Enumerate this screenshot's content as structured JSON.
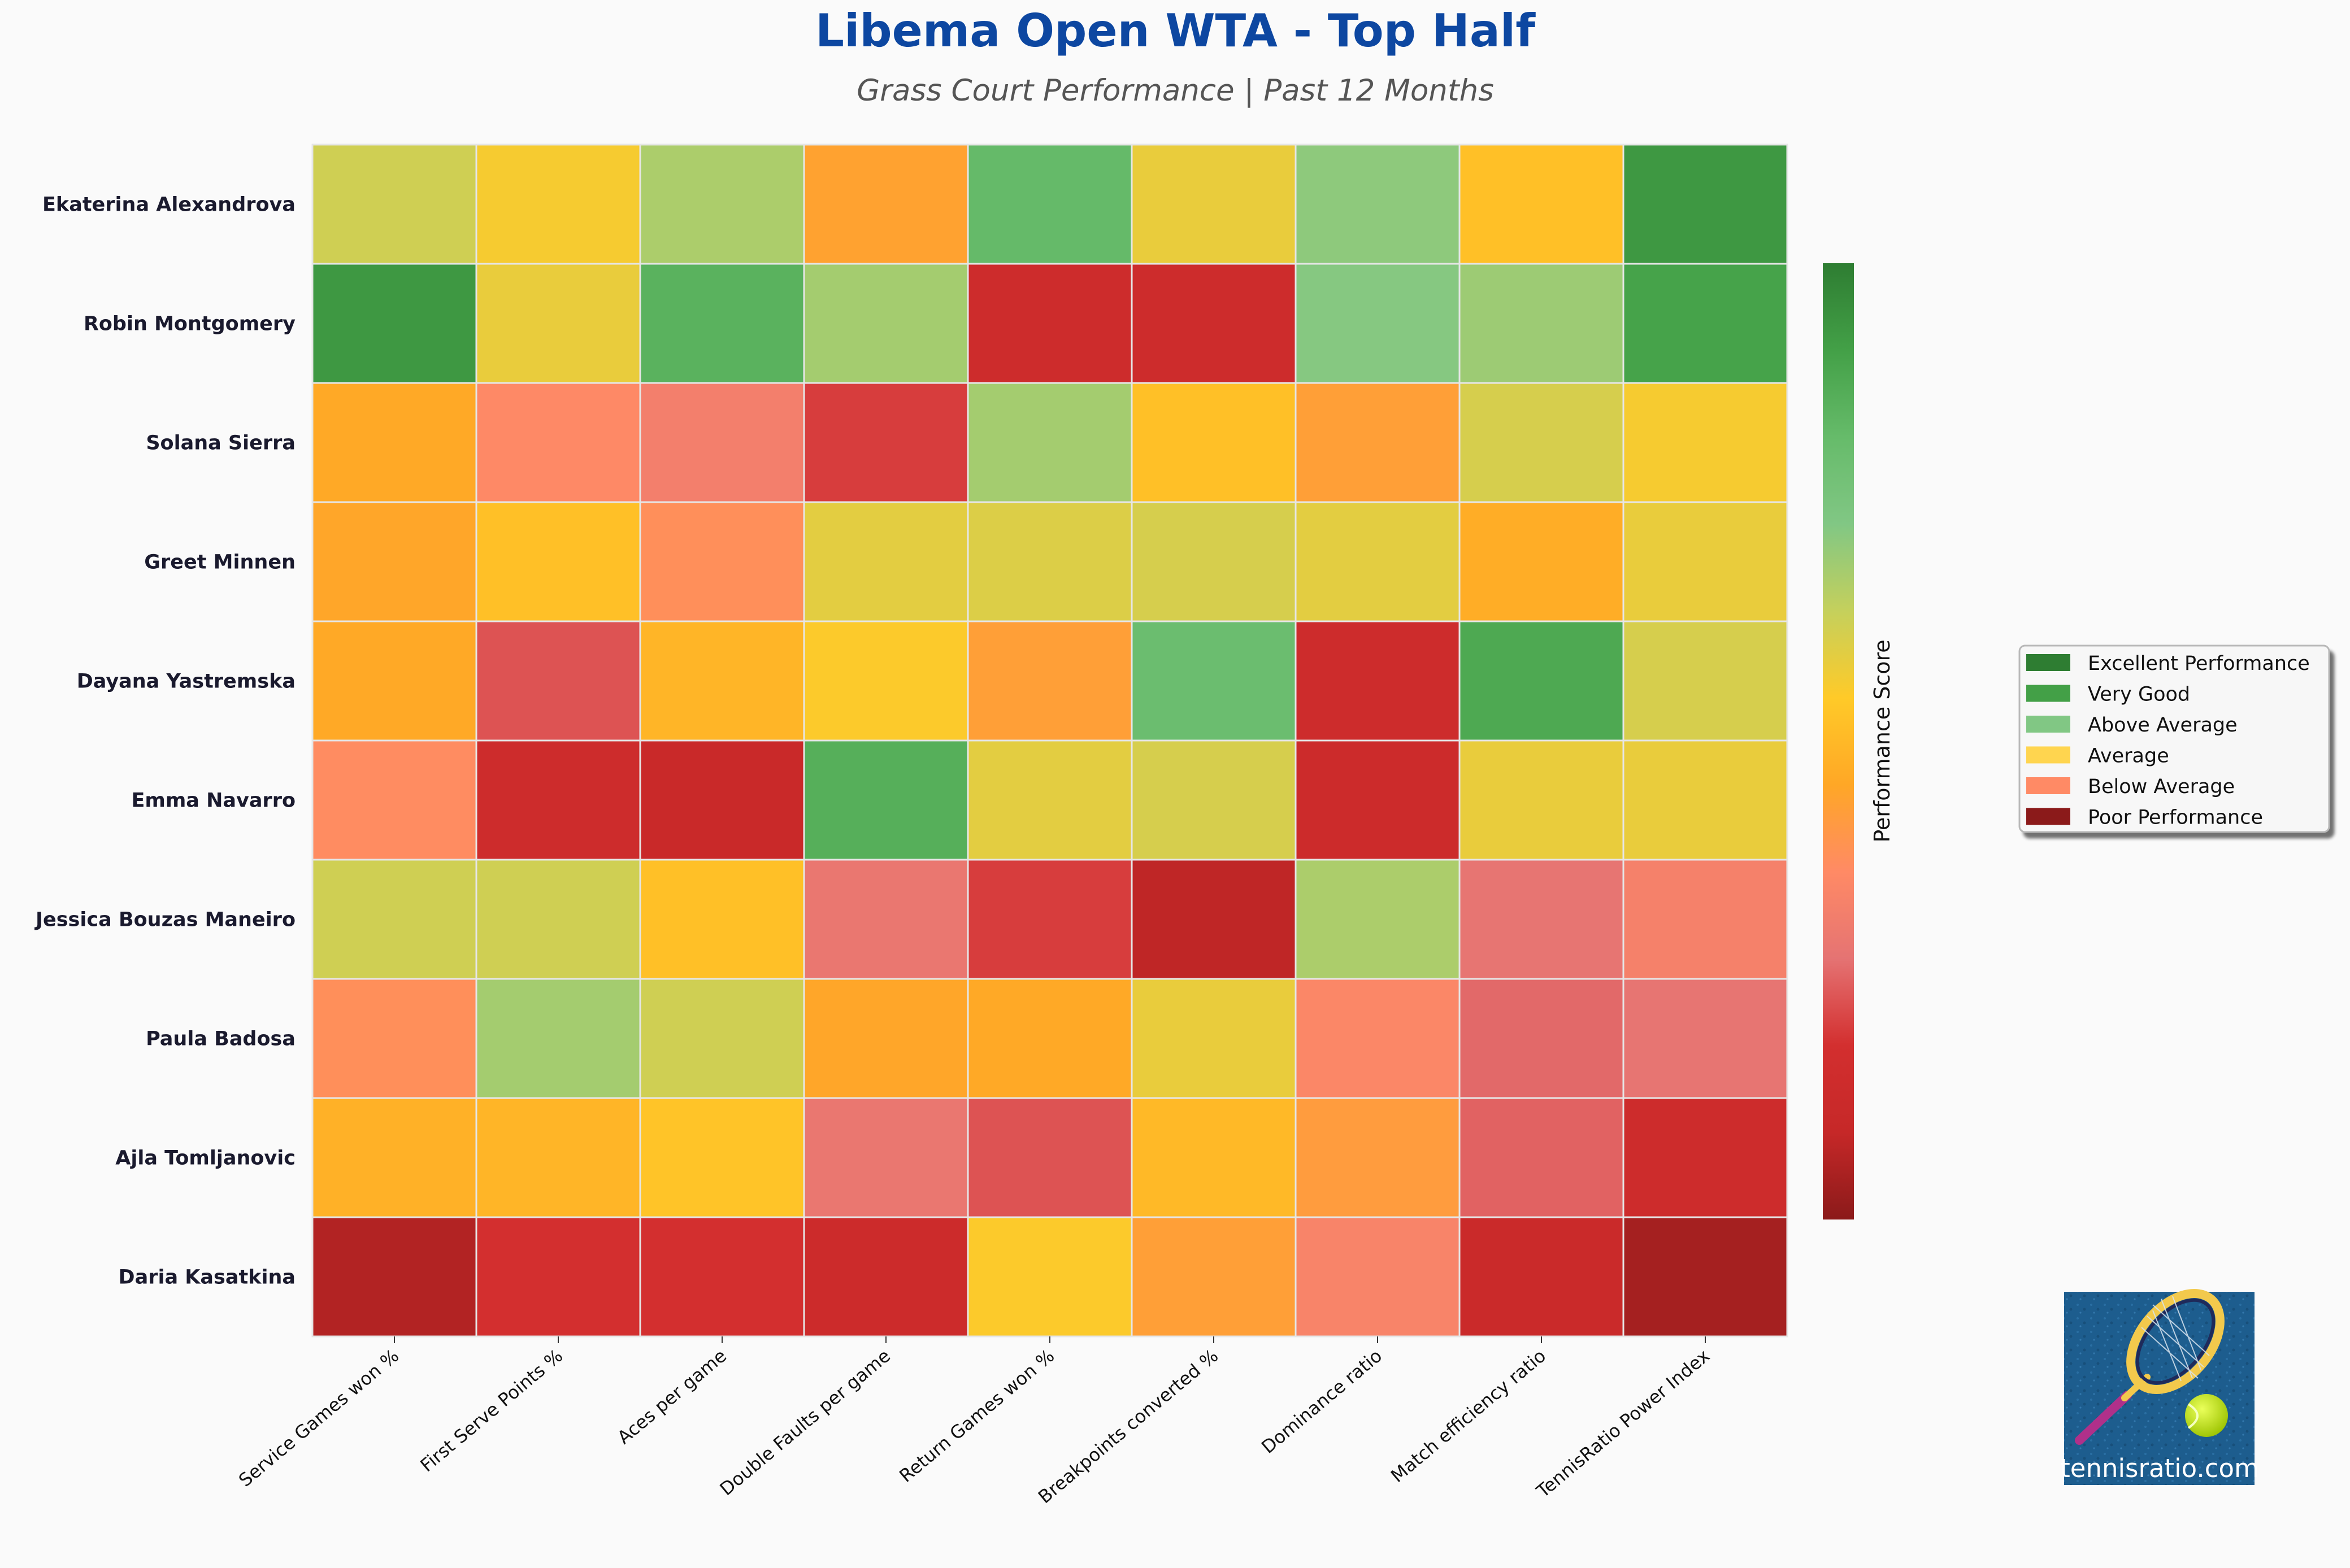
{
  "chart_data": {
    "type": "heatmap",
    "title": "Libema Open WTA - Top Half",
    "subtitle": "Grass Court Performance | Past 12 Months",
    "rows": [
      "Ekaterina Alexandrova",
      "Robin Montgomery",
      "Solana Sierra",
      "Greet Minnen",
      "Dayana Yastremska",
      "Emma Navarro",
      "Jessica Bouzas Maneiro",
      "Paula Badosa",
      "Ajla Tomljanovic",
      "Daria Kasatkina"
    ],
    "columns": [
      "Service Games won %",
      "First Serve Points %",
      "Aces per game",
      "Double Faults per game",
      "Return Games won %",
      "Breakpoints converted %",
      "Dominance ratio",
      "Match efficiency ratio",
      "TennisRatio Power Index"
    ],
    "values": [
      [
        0.62,
        0.56,
        0.67,
        0.44,
        0.82,
        0.58,
        0.71,
        0.52,
        0.93
      ],
      [
        0.93,
        0.58,
        0.85,
        0.68,
        0.14,
        0.14,
        0.72,
        0.69,
        0.9
      ],
      [
        0.46,
        0.36,
        0.32,
        0.2,
        0.68,
        0.52,
        0.43,
        0.61,
        0.56
      ],
      [
        0.45,
        0.52,
        0.38,
        0.59,
        0.6,
        0.61,
        0.59,
        0.47,
        0.58
      ],
      [
        0.46,
        0.23,
        0.49,
        0.55,
        0.43,
        0.8,
        0.14,
        0.88,
        0.61
      ],
      [
        0.37,
        0.14,
        0.11,
        0.86,
        0.59,
        0.61,
        0.13,
        0.58,
        0.58
      ],
      [
        0.62,
        0.62,
        0.52,
        0.29,
        0.2,
        0.08,
        0.67,
        0.28,
        0.33
      ],
      [
        0.38,
        0.68,
        0.62,
        0.45,
        0.46,
        0.58,
        0.35,
        0.26,
        0.28
      ],
      [
        0.48,
        0.49,
        0.53,
        0.29,
        0.23,
        0.5,
        0.42,
        0.25,
        0.14
      ],
      [
        0.06,
        0.18,
        0.18,
        0.13,
        0.55,
        0.43,
        0.34,
        0.12,
        0.04
      ]
    ],
    "colorbar": {
      "label": "Performance Score",
      "colors": [
        "#8b1a1a",
        "#c62828",
        "#d32f2f",
        "#e57373",
        "#ff8a65",
        "#ffa726",
        "#ffca28",
        "#c5d05c",
        "#81c784",
        "#66bb6a",
        "#43a047",
        "#2e7d32"
      ]
    },
    "legend": {
      "placement": "right",
      "entries": [
        {
          "label": "Excellent Performance",
          "color": "#2e7d32"
        },
        {
          "label": "Very Good",
          "color": "#43a047"
        },
        {
          "label": "Above Average",
          "color": "#81c784"
        },
        {
          "label": "Average",
          "color": "#ffd54f"
        },
        {
          "label": "Below Average",
          "color": "#ff8a65"
        },
        {
          "label": "Poor Performance",
          "color": "#8b1a1a"
        }
      ]
    },
    "grid": false
  },
  "logo": {
    "text": "tennisratio.com"
  }
}
